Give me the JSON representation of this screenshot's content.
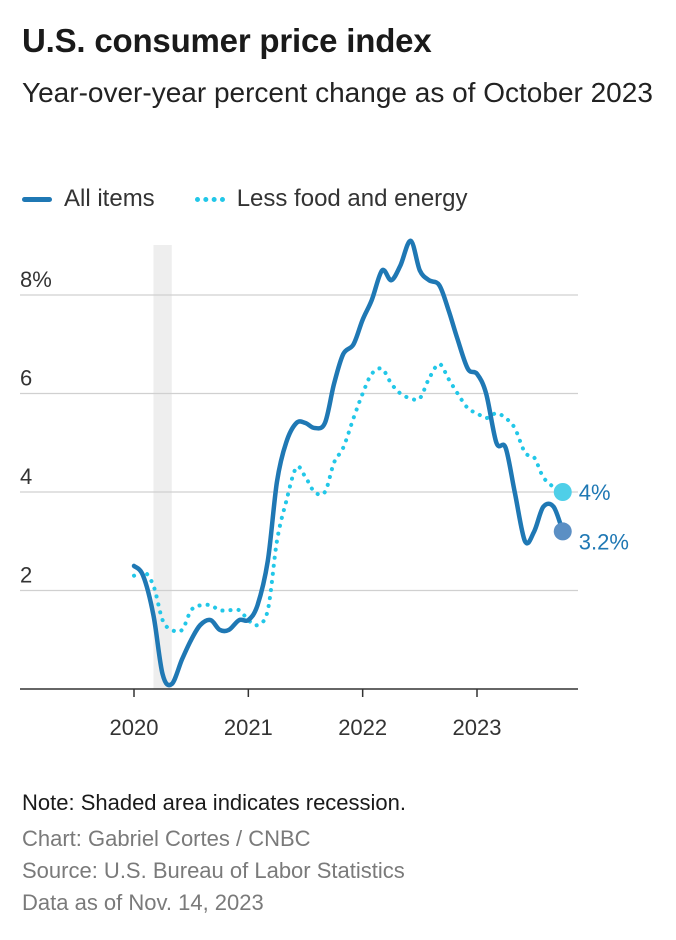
{
  "header": {
    "title": "U.S. consumer price index",
    "subtitle": "Year-over-year percent change as of October 2023"
  },
  "legend": {
    "all_items": "All items",
    "core": "Less food and energy"
  },
  "footer": {
    "note": "Note: Shaded area indicates recession.",
    "credit": "Chart: Gabriel Cortes / CNBC",
    "source": "Source: U.S. Bureau of Labor Statistics",
    "as_of": "Data as of Nov. 14, 2023"
  },
  "colors": {
    "all_items": "#1f78b4",
    "core": "#22c7e8",
    "core_end_marker": "#4fcfe8",
    "all_end_marker": "#5b8fc4",
    "label_text": "#1f78b4",
    "grid": "#d0d0d0",
    "recession": "#eeeeee"
  },
  "chart_data": {
    "type": "line",
    "title": "U.S. consumer price index",
    "subtitle": "Year-over-year percent change as of October 2023",
    "xlabel": "",
    "ylabel": "",
    "xlim": [
      2019.0,
      2024.0
    ],
    "ylim": [
      0,
      9
    ],
    "x_ticks": [
      2020,
      2021,
      2022,
      2023
    ],
    "x_tick_labels": [
      "2020",
      "2021",
      "2022",
      "2023"
    ],
    "y_ticks": [
      2,
      4,
      6,
      8
    ],
    "y_tick_labels": [
      "2",
      "4",
      "6",
      "8%"
    ],
    "grid": "horizontal",
    "legend_position": "top-left",
    "recession": {
      "start": 2020.17,
      "end": 2020.33
    },
    "series": [
      {
        "name": "All items",
        "style": "solid",
        "end_label": "3.2%",
        "points": [
          [
            2020.0,
            2.5
          ],
          [
            2020.08,
            2.3
          ],
          [
            2020.17,
            1.5
          ],
          [
            2020.25,
            0.3
          ],
          [
            2020.33,
            0.1
          ],
          [
            2020.42,
            0.6
          ],
          [
            2020.5,
            1.0
          ],
          [
            2020.58,
            1.3
          ],
          [
            2020.67,
            1.4
          ],
          [
            2020.75,
            1.2
          ],
          [
            2020.83,
            1.2
          ],
          [
            2020.92,
            1.4
          ],
          [
            2021.0,
            1.4
          ],
          [
            2021.08,
            1.7
          ],
          [
            2021.17,
            2.6
          ],
          [
            2021.25,
            4.2
          ],
          [
            2021.33,
            5.0
          ],
          [
            2021.42,
            5.4
          ],
          [
            2021.5,
            5.4
          ],
          [
            2021.58,
            5.3
          ],
          [
            2021.67,
            5.4
          ],
          [
            2021.75,
            6.2
          ],
          [
            2021.83,
            6.8
          ],
          [
            2021.92,
            7.0
          ],
          [
            2022.0,
            7.5
          ],
          [
            2022.08,
            7.9
          ],
          [
            2022.17,
            8.5
          ],
          [
            2022.25,
            8.3
          ],
          [
            2022.33,
            8.6
          ],
          [
            2022.42,
            9.1
          ],
          [
            2022.5,
            8.5
          ],
          [
            2022.58,
            8.3
          ],
          [
            2022.67,
            8.2
          ],
          [
            2022.75,
            7.7
          ],
          [
            2022.83,
            7.1
          ],
          [
            2022.92,
            6.5
          ],
          [
            2023.0,
            6.4
          ],
          [
            2023.08,
            6.0
          ],
          [
            2023.17,
            5.0
          ],
          [
            2023.25,
            4.9
          ],
          [
            2023.33,
            4.0
          ],
          [
            2023.42,
            3.0
          ],
          [
            2023.5,
            3.2
          ],
          [
            2023.58,
            3.7
          ],
          [
            2023.67,
            3.7
          ],
          [
            2023.75,
            3.2
          ]
        ]
      },
      {
        "name": "Less food and energy",
        "style": "dotted",
        "end_label": "4%",
        "points": [
          [
            2020.0,
            2.3
          ],
          [
            2020.08,
            2.4
          ],
          [
            2020.17,
            2.1
          ],
          [
            2020.25,
            1.4
          ],
          [
            2020.33,
            1.2
          ],
          [
            2020.42,
            1.2
          ],
          [
            2020.5,
            1.6
          ],
          [
            2020.58,
            1.7
          ],
          [
            2020.67,
            1.7
          ],
          [
            2020.75,
            1.6
          ],
          [
            2020.83,
            1.6
          ],
          [
            2020.92,
            1.6
          ],
          [
            2021.0,
            1.4
          ],
          [
            2021.08,
            1.3
          ],
          [
            2021.17,
            1.6
          ],
          [
            2021.25,
            3.0
          ],
          [
            2021.33,
            3.8
          ],
          [
            2021.42,
            4.5
          ],
          [
            2021.5,
            4.3
          ],
          [
            2021.58,
            4.0
          ],
          [
            2021.67,
            4.0
          ],
          [
            2021.75,
            4.6
          ],
          [
            2021.83,
            4.9
          ],
          [
            2021.92,
            5.5
          ],
          [
            2022.0,
            6.0
          ],
          [
            2022.08,
            6.4
          ],
          [
            2022.17,
            6.5
          ],
          [
            2022.25,
            6.2
          ],
          [
            2022.33,
            6.0
          ],
          [
            2022.42,
            5.9
          ],
          [
            2022.5,
            5.9
          ],
          [
            2022.58,
            6.3
          ],
          [
            2022.67,
            6.6
          ],
          [
            2022.75,
            6.3
          ],
          [
            2022.83,
            6.0
          ],
          [
            2022.92,
            5.7
          ],
          [
            2023.0,
            5.6
          ],
          [
            2023.08,
            5.5
          ],
          [
            2023.17,
            5.6
          ],
          [
            2023.25,
            5.5
          ],
          [
            2023.33,
            5.3
          ],
          [
            2023.42,
            4.8
          ],
          [
            2023.5,
            4.7
          ],
          [
            2023.58,
            4.3
          ],
          [
            2023.67,
            4.1
          ],
          [
            2023.75,
            4.0
          ]
        ]
      }
    ]
  }
}
